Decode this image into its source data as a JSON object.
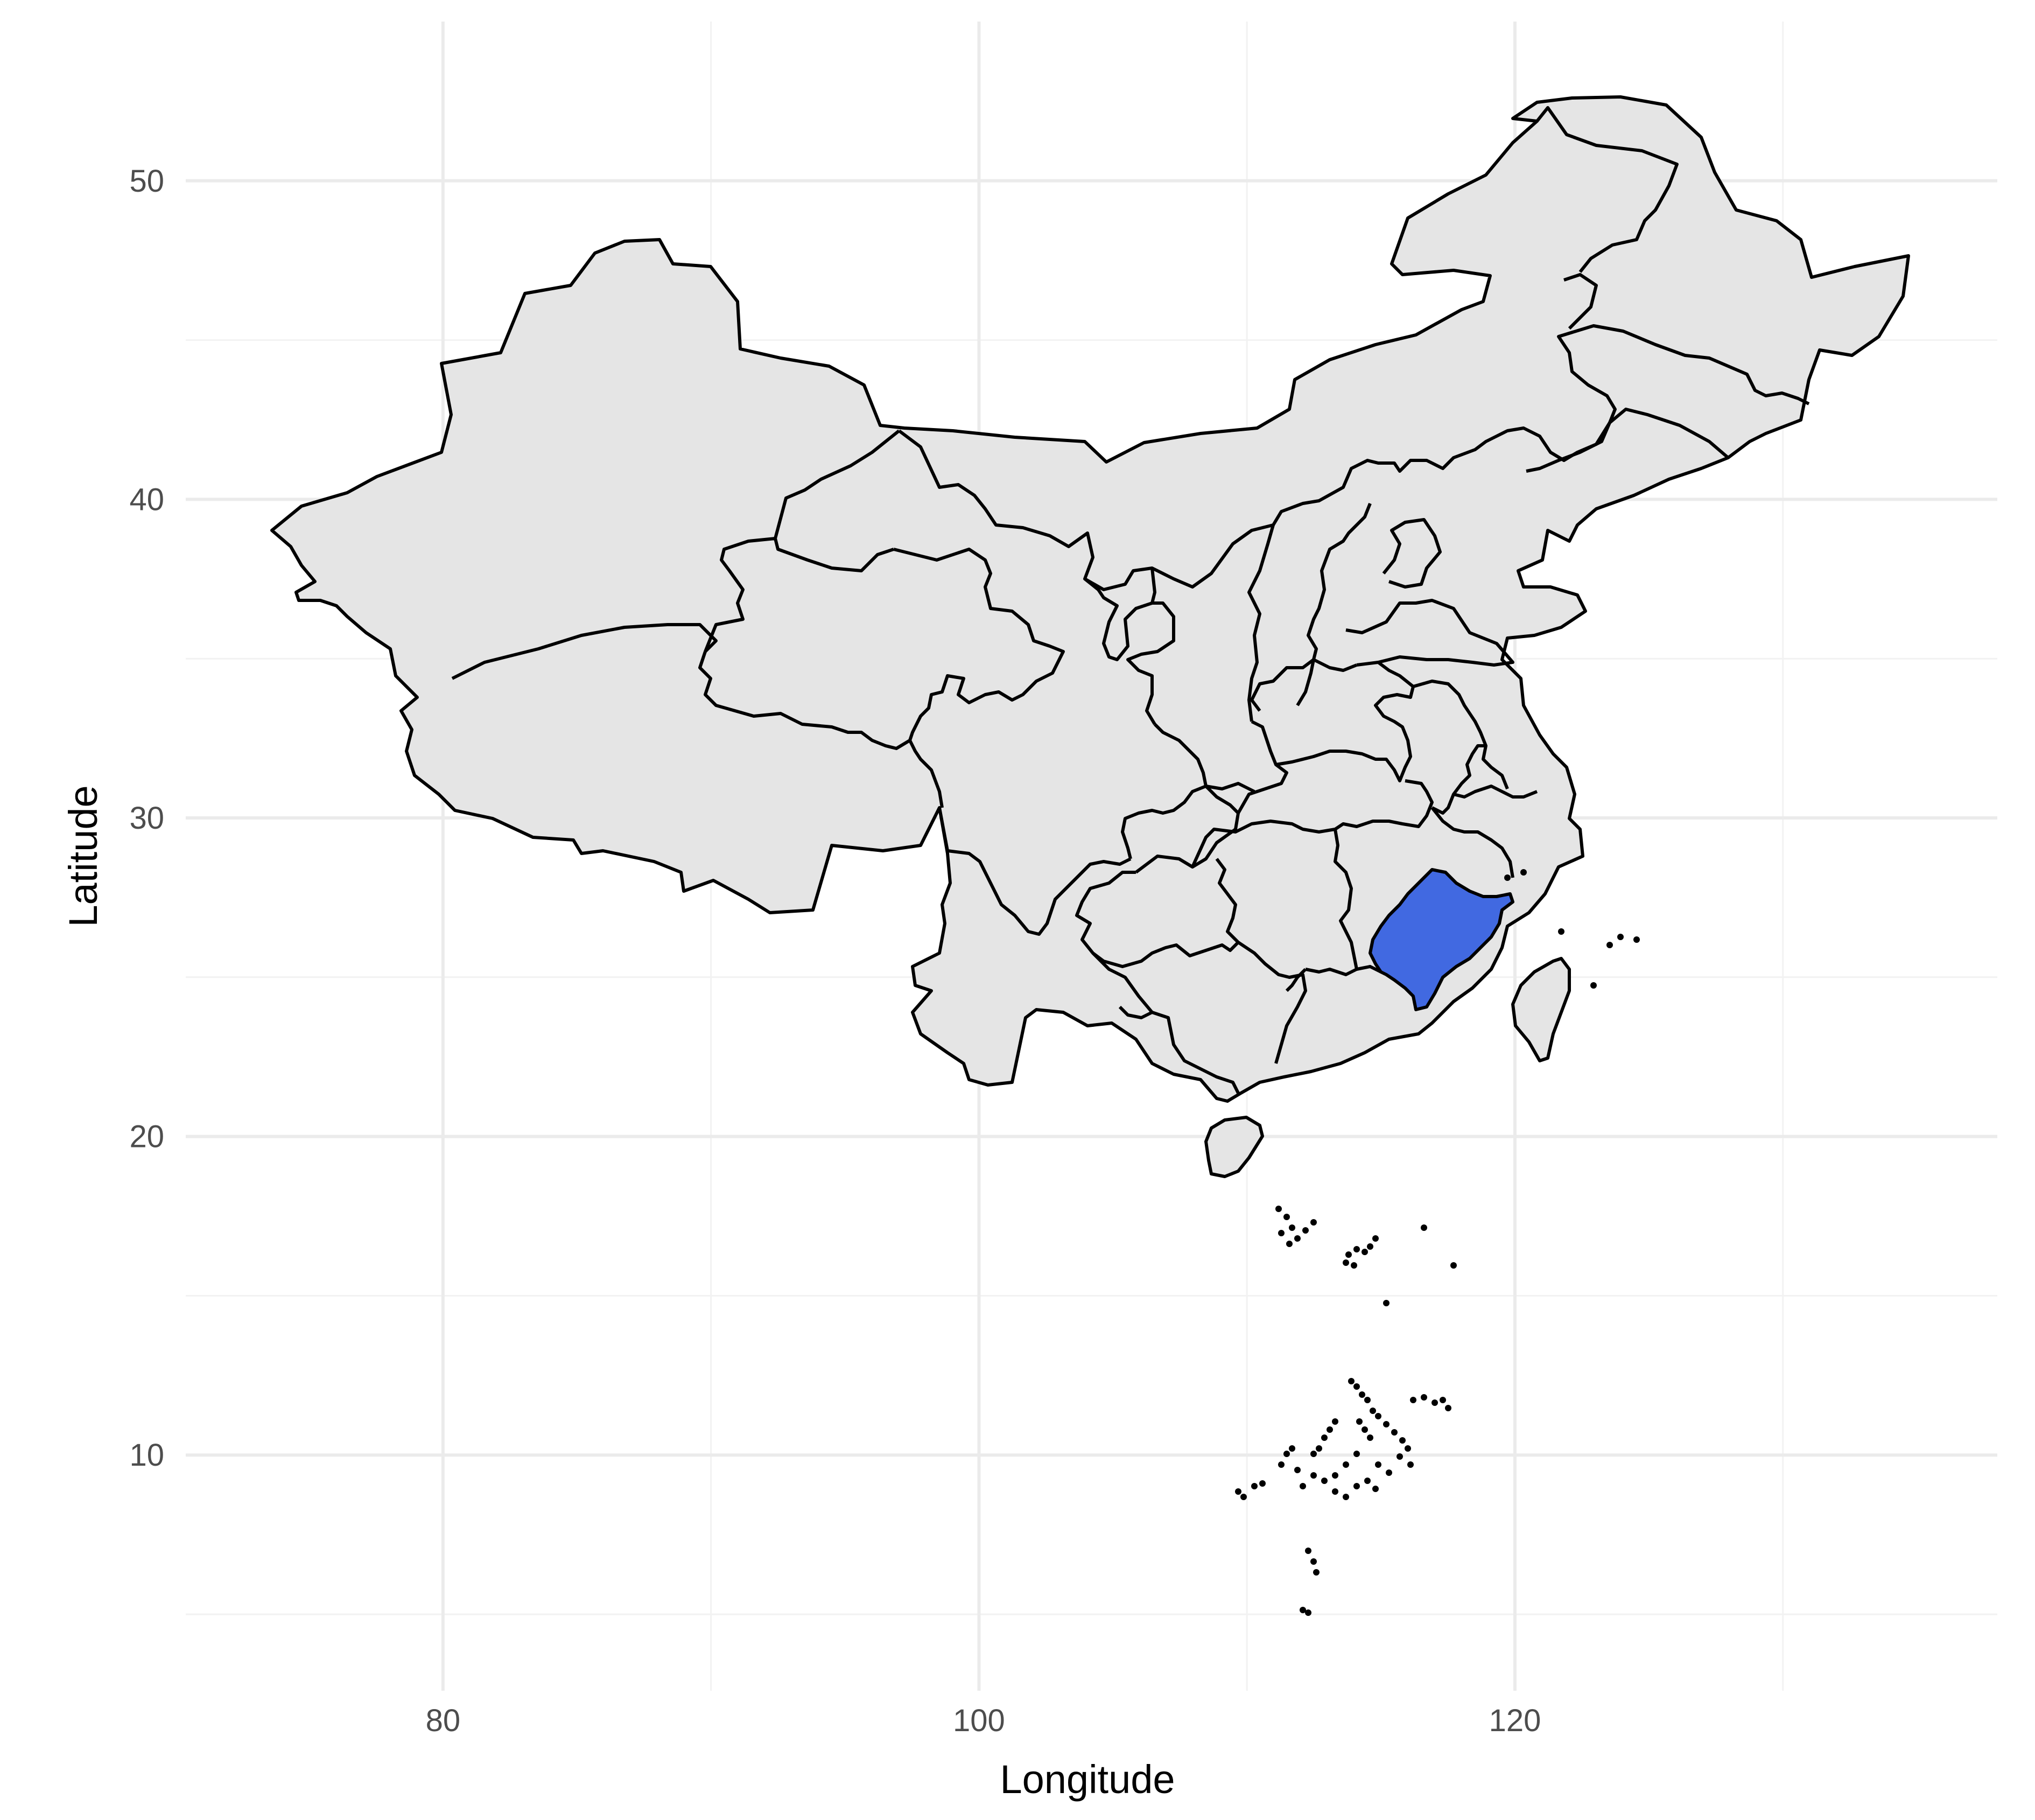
{
  "axes": {
    "x_title": "Longitude",
    "y_title": "Latitude",
    "x_ticks": [
      80,
      100,
      120
    ],
    "y_ticks": [
      10,
      20,
      30,
      40,
      50
    ],
    "x_minor": [
      90,
      110,
      130
    ],
    "y_minor": [
      5,
      15,
      25,
      35,
      45
    ],
    "xlim": [
      70.4,
      138
    ],
    "ylim": [
      2.6,
      55
    ]
  },
  "map": {
    "region": "China",
    "highlighted_province": "Fujian",
    "colors": {
      "land": "#e5e5e5",
      "highlight": "#4169e1",
      "border": "#000000",
      "grid": "#ebebeb"
    }
  }
}
